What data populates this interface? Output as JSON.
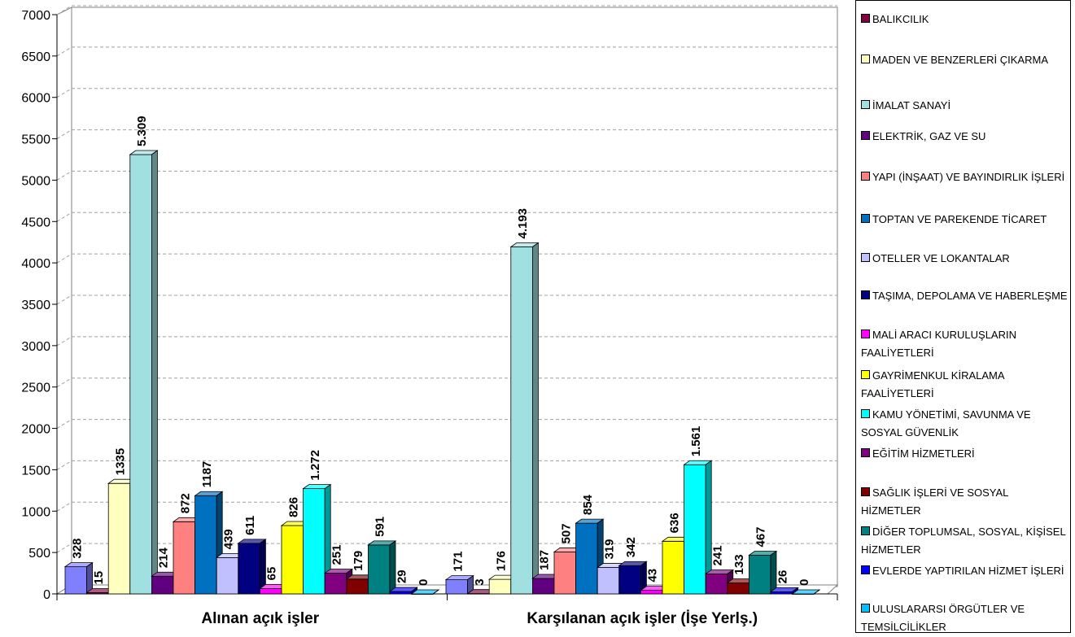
{
  "chart_data": {
    "type": "bar",
    "categories": [
      "Alınan açık işler",
      "Karşılanan açık işler (İşe Yerlş.)"
    ],
    "ylim": [
      0,
      7000
    ],
    "yticks": [
      "0",
      "500",
      "1000",
      "1500",
      "2000",
      "2500",
      "3000",
      "3500",
      "4000",
      "4500",
      "5000",
      "5500",
      "6000",
      "6500",
      "7000"
    ],
    "grid": true,
    "legend_position": "right",
    "series": [
      {
        "name": "",
        "color": "#8080ff",
        "values": [
          328,
          171
        ],
        "labels": [
          "328",
          "171"
        ]
      },
      {
        "name": "BALIKCILIK",
        "color": "#800040",
        "values": [
          15,
          3
        ],
        "labels": [
          "15",
          "3"
        ]
      },
      {
        "name": "MADEN VE BENZERLERİ ÇIKARMA",
        "color": "#ffffc0",
        "values": [
          1335,
          176
        ],
        "labels": [
          "1335",
          "176"
        ]
      },
      {
        "name": "İMALAT SANAYİ",
        "color": "#a0e0e0",
        "values": [
          5309,
          4193
        ],
        "labels": [
          "5.309",
          "4.193"
        ]
      },
      {
        "name": "ELEKTRİK, GAZ VE SU",
        "color": "#600080",
        "values": [
          214,
          187
        ],
        "labels": [
          "214",
          "187"
        ]
      },
      {
        "name": "YAPI (İNŞAAT) VE BAYINDIRLIK İŞLERİ",
        "color": "#ff8080",
        "values": [
          872,
          507
        ],
        "labels": [
          "872",
          "507"
        ]
      },
      {
        "name": "TOPTAN VE PAREKENDE TİCARET",
        "color": "#0070c0",
        "values": [
          1187,
          854
        ],
        "labels": [
          "1187",
          "854"
        ]
      },
      {
        "name": "OTELLER VE LOKANTALAR",
        "color": "#c0c0ff",
        "values": [
          439,
          319
        ],
        "labels": [
          "439",
          "319"
        ]
      },
      {
        "name": "TAŞIMA, DEPOLAMA VE HABERLEŞME",
        "color": "#000080",
        "values": [
          611,
          342
        ],
        "labels": [
          "611",
          "342"
        ]
      },
      {
        "name": "MALİ ARACI KURULUŞLARIN FAALİYETLERİ",
        "color": "#ff00ff",
        "values": [
          65,
          43
        ],
        "labels": [
          "65",
          "43"
        ]
      },
      {
        "name": "GAYRİMENKUL KİRALAMA FAALİYETLERİ",
        "color": "#ffff00",
        "values": [
          826,
          636
        ],
        "labels": [
          "826",
          "636"
        ]
      },
      {
        "name": "KAMU YÖNETİMİ, SAVUNMA VE SOSYAL GÜVENLİK",
        "color": "#00ffff",
        "values": [
          1272,
          1561
        ],
        "labels": [
          "1.272",
          "1.561"
        ]
      },
      {
        "name": "EĞİTİM HİZMETLERİ",
        "color": "#800080",
        "values": [
          251,
          241
        ],
        "labels": [
          "251",
          "241"
        ]
      },
      {
        "name": "SAĞLIK İŞLERİ VE SOSYAL HİZMETLER",
        "color": "#800000",
        "values": [
          179,
          133
        ],
        "labels": [
          "179",
          "133"
        ]
      },
      {
        "name": "DİĞER TOPLUMSAL, SOSYAL, KİŞİSEL HİZMETLER",
        "color": "#008080",
        "values": [
          591,
          467
        ],
        "labels": [
          "591",
          "467"
        ]
      },
      {
        "name": "EVLERDE YAPTIRILAN HİZMET İŞLERİ",
        "color": "#0000ff",
        "values": [
          29,
          26
        ],
        "labels": [
          "29",
          "26"
        ]
      },
      {
        "name": "ULUSLARARSI ÖRGÜTLER VE TEMSİLCİLİKLER",
        "color": "#00c0ff",
        "values": [
          0,
          0
        ],
        "labels": [
          "0",
          "0"
        ]
      }
    ]
  }
}
